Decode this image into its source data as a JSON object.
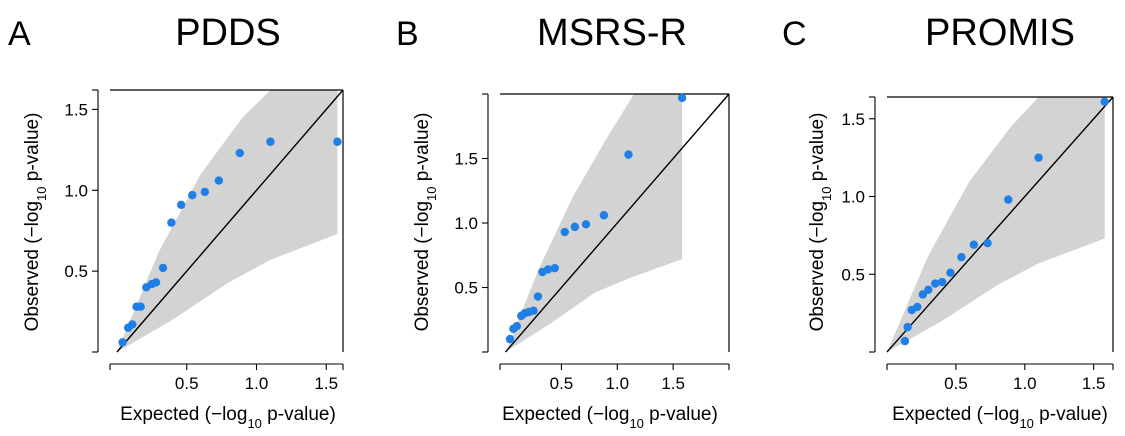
{
  "chart_data": [
    {
      "panel_label": "A",
      "title": "PDDS",
      "type": "scatter",
      "xlabel": "Expected (−log10 p-value)",
      "ylabel": "Observed (−log10 p-value)",
      "xlim": [
        -0.05,
        1.62
      ],
      "ylim": [
        0.0,
        1.62
      ],
      "xticks": [
        0.5,
        1.0,
        1.5
      ],
      "xtick_labels": [
        "0.5",
        "1.0",
        "1.5"
      ],
      "yticks": [
        0.5,
        1.0,
        1.5
      ],
      "ytick_labels": [
        "0.5",
        "1.0",
        "1.5"
      ],
      "points": [
        {
          "x": 0.04,
          "y": 0.06
        },
        {
          "x": 0.08,
          "y": 0.15
        },
        {
          "x": 0.11,
          "y": 0.17
        },
        {
          "x": 0.14,
          "y": 0.28
        },
        {
          "x": 0.17,
          "y": 0.28
        },
        {
          "x": 0.21,
          "y": 0.4
        },
        {
          "x": 0.25,
          "y": 0.42
        },
        {
          "x": 0.28,
          "y": 0.43
        },
        {
          "x": 0.33,
          "y": 0.52
        },
        {
          "x": 0.39,
          "y": 0.8
        },
        {
          "x": 0.46,
          "y": 0.91
        },
        {
          "x": 0.54,
          "y": 0.97
        },
        {
          "x": 0.63,
          "y": 0.99
        },
        {
          "x": 0.73,
          "y": 1.06
        },
        {
          "x": 0.88,
          "y": 1.23
        },
        {
          "x": 1.1,
          "y": 1.3
        },
        {
          "x": 1.58,
          "y": 1.3
        }
      ],
      "band_upper": [
        [
          0.0,
          0.0
        ],
        [
          0.3,
          0.62
        ],
        [
          0.6,
          1.1
        ],
        [
          0.9,
          1.45
        ],
        [
          1.1,
          1.62
        ],
        [
          1.58,
          1.62
        ]
      ],
      "band_lower": [
        [
          0.0,
          0.0
        ],
        [
          0.4,
          0.2
        ],
        [
          0.8,
          0.43
        ],
        [
          1.1,
          0.57
        ],
        [
          1.58,
          0.73
        ]
      ],
      "band_end_x": 1.58,
      "diagonal": true
    },
    {
      "panel_label": "B",
      "title": "MSRS-R",
      "type": "scatter",
      "xlabel": "Expected (−log10 p-value)",
      "ylabel": "Observed (−log10 p-value)",
      "xlim": [
        -0.05,
        2.0
      ],
      "ylim": [
        0.0,
        2.0
      ],
      "xticks": [
        0.5,
        1.0,
        1.5
      ],
      "xtick_labels": [
        "0.5",
        "1.0",
        "1.5"
      ],
      "yticks": [
        0.5,
        1.0,
        1.5
      ],
      "ytick_labels": [
        "0.5",
        "1.0",
        "1.5"
      ],
      "points": [
        {
          "x": 0.04,
          "y": 0.1
        },
        {
          "x": 0.07,
          "y": 0.18
        },
        {
          "x": 0.1,
          "y": 0.2
        },
        {
          "x": 0.14,
          "y": 0.28
        },
        {
          "x": 0.17,
          "y": 0.3
        },
        {
          "x": 0.21,
          "y": 0.31
        },
        {
          "x": 0.25,
          "y": 0.32
        },
        {
          "x": 0.29,
          "y": 0.43
        },
        {
          "x": 0.33,
          "y": 0.62
        },
        {
          "x": 0.38,
          "y": 0.64
        },
        {
          "x": 0.44,
          "y": 0.65
        },
        {
          "x": 0.53,
          "y": 0.93
        },
        {
          "x": 0.62,
          "y": 0.97
        },
        {
          "x": 0.72,
          "y": 0.99
        },
        {
          "x": 0.88,
          "y": 1.06
        },
        {
          "x": 1.1,
          "y": 1.53
        },
        {
          "x": 1.58,
          "y": 1.97
        }
      ],
      "band_upper": [
        [
          0.0,
          0.0
        ],
        [
          0.3,
          0.65
        ],
        [
          0.6,
          1.2
        ],
        [
          0.9,
          1.65
        ],
        [
          1.15,
          2.0
        ],
        [
          1.58,
          2.0
        ]
      ],
      "band_lower": [
        [
          0.0,
          0.0
        ],
        [
          0.4,
          0.22
        ],
        [
          0.8,
          0.46
        ],
        [
          1.1,
          0.57
        ],
        [
          1.58,
          0.72
        ]
      ],
      "band_end_x": 1.58,
      "diagonal": true
    },
    {
      "panel_label": "C",
      "title": "PROMIS",
      "type": "scatter",
      "xlabel": "Expected (−log10 p-value)",
      "ylabel": "Observed (−log10 p-value)",
      "xlim": [
        0.0,
        1.64
      ],
      "ylim": [
        0.0,
        1.64
      ],
      "xticks": [
        0.5,
        1.0,
        1.5
      ],
      "xtick_labels": [
        "0.5",
        "1.0",
        "1.5"
      ],
      "yticks": [
        0.5,
        1.0,
        1.5
      ],
      "ytick_labels": [
        "0.5",
        "1.0",
        "1.5"
      ],
      "points": [
        {
          "x": 0.13,
          "y": 0.07
        },
        {
          "x": 0.15,
          "y": 0.16
        },
        {
          "x": 0.18,
          "y": 0.27
        },
        {
          "x": 0.22,
          "y": 0.29
        },
        {
          "x": 0.26,
          "y": 0.37
        },
        {
          "x": 0.3,
          "y": 0.4
        },
        {
          "x": 0.35,
          "y": 0.44
        },
        {
          "x": 0.4,
          "y": 0.45
        },
        {
          "x": 0.46,
          "y": 0.51
        },
        {
          "x": 0.54,
          "y": 0.61
        },
        {
          "x": 0.63,
          "y": 0.69
        },
        {
          "x": 0.73,
          "y": 0.7
        },
        {
          "x": 0.88,
          "y": 0.98
        },
        {
          "x": 1.1,
          "y": 1.25
        },
        {
          "x": 1.58,
          "y": 1.61
        }
      ],
      "band_upper": [
        [
          0.0,
          0.0
        ],
        [
          0.3,
          0.62
        ],
        [
          0.6,
          1.1
        ],
        [
          0.9,
          1.45
        ],
        [
          1.1,
          1.64
        ],
        [
          1.58,
          1.64
        ]
      ],
      "band_lower": [
        [
          0.0,
          0.0
        ],
        [
          0.4,
          0.2
        ],
        [
          0.8,
          0.43
        ],
        [
          1.1,
          0.57
        ],
        [
          1.58,
          0.73
        ]
      ],
      "band_end_x": 1.58,
      "diagonal": true
    }
  ],
  "colors": {
    "point": "#1f7fe6",
    "band": "#d3d3d3",
    "line": "#000000",
    "text": "#000000"
  }
}
